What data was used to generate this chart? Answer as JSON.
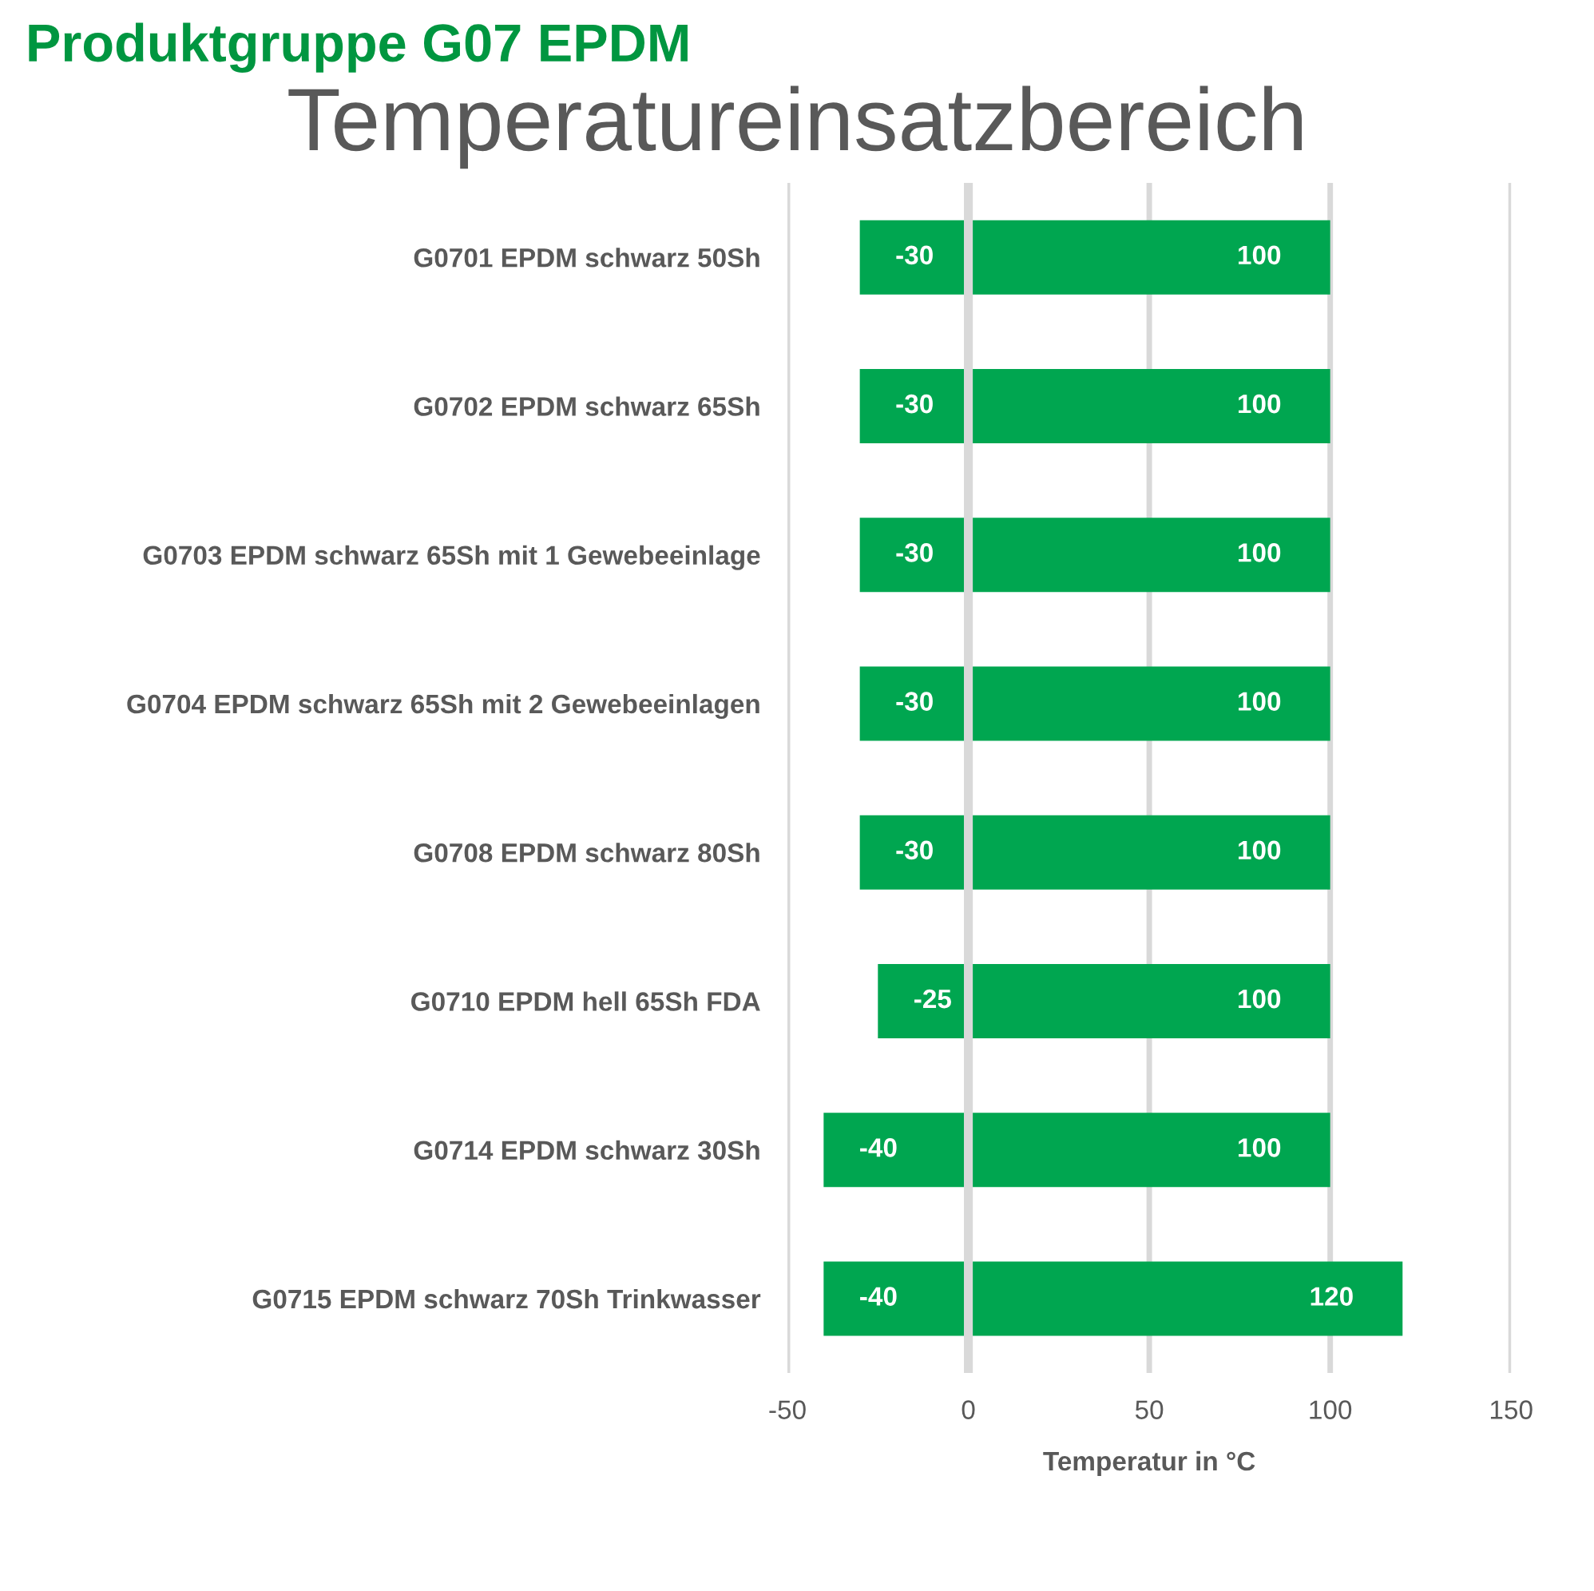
{
  "chart_data": {
    "type": "bar",
    "orientation": "horizontal",
    "stacked": true,
    "title": "Produktgruppe G07 EPDM",
    "subtitle": "Temperatureinsatzbereich",
    "xlabel": "Temperatur in °C",
    "categories": [
      "G0701 EPDM schwarz 50Sh",
      "G0702 EPDM schwarz 65Sh",
      "G0703 EPDM schwarz 65Sh mit 1 Gewebeeinlage",
      "G0704 EPDM schwarz 65Sh mit 2 Gewebeeinlagen",
      "G0708 EPDM schwarz 80Sh",
      "G0710 EPDM hell 65Sh FDA",
      "G0714 EPDM schwarz 30Sh",
      "G0715 EPDM schwarz 70Sh Trinkwasser"
    ],
    "series": [
      {
        "color": "#00a650",
        "values": [
          -30,
          -30,
          -30,
          -30,
          -30,
          -25,
          -40,
          -40
        ]
      },
      {
        "color": "#00a650",
        "values": [
          100,
          100,
          100,
          100,
          100,
          100,
          100,
          120
        ]
      }
    ],
    "xlim": [
      -50,
      150
    ],
    "xticks": [
      -50,
      0,
      50,
      100,
      150
    ],
    "grid": "x",
    "legend": false,
    "data_labels": true
  }
}
